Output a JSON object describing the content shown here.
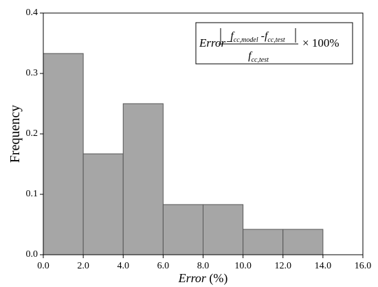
{
  "chart_data": {
    "type": "histogram",
    "bins": [
      0,
      2,
      4,
      6,
      8,
      10,
      12,
      14
    ],
    "values": [
      0.333,
      0.167,
      0.25,
      0.083,
      0.083,
      0.042,
      0.042
    ],
    "color": "#a6a6a6",
    "xlim": [
      0,
      16
    ],
    "xticks": [
      {
        "value": 0,
        "label": "0.0"
      },
      {
        "value": 2,
        "label": "2.0"
      },
      {
        "value": 4,
        "label": "4.0"
      },
      {
        "value": 6,
        "label": "6.0"
      },
      {
        "value": 8,
        "label": "8.0"
      },
      {
        "value": 10,
        "label": "10.0"
      },
      {
        "value": 12,
        "label": "12.0"
      },
      {
        "value": 14,
        "label": "14.0"
      },
      {
        "value": 16,
        "label": "16.0"
      }
    ],
    "ylim": [
      0,
      0.4
    ],
    "yticks": [
      {
        "value": 0,
        "label": "0.0"
      },
      0.1,
      0.2,
      0.3,
      0.4
    ],
    "xlabel": [
      "Error",
      " (%)"
    ],
    "ylabel": "Frequency",
    "annotation": {
      "lhs": "Error=",
      "numerator": [
        "f",
        "cc,model",
        " -f",
        "cc,test"
      ],
      "denominator": [
        "f",
        "cc,test"
      ],
      "rhs": "× 100%"
    }
  }
}
